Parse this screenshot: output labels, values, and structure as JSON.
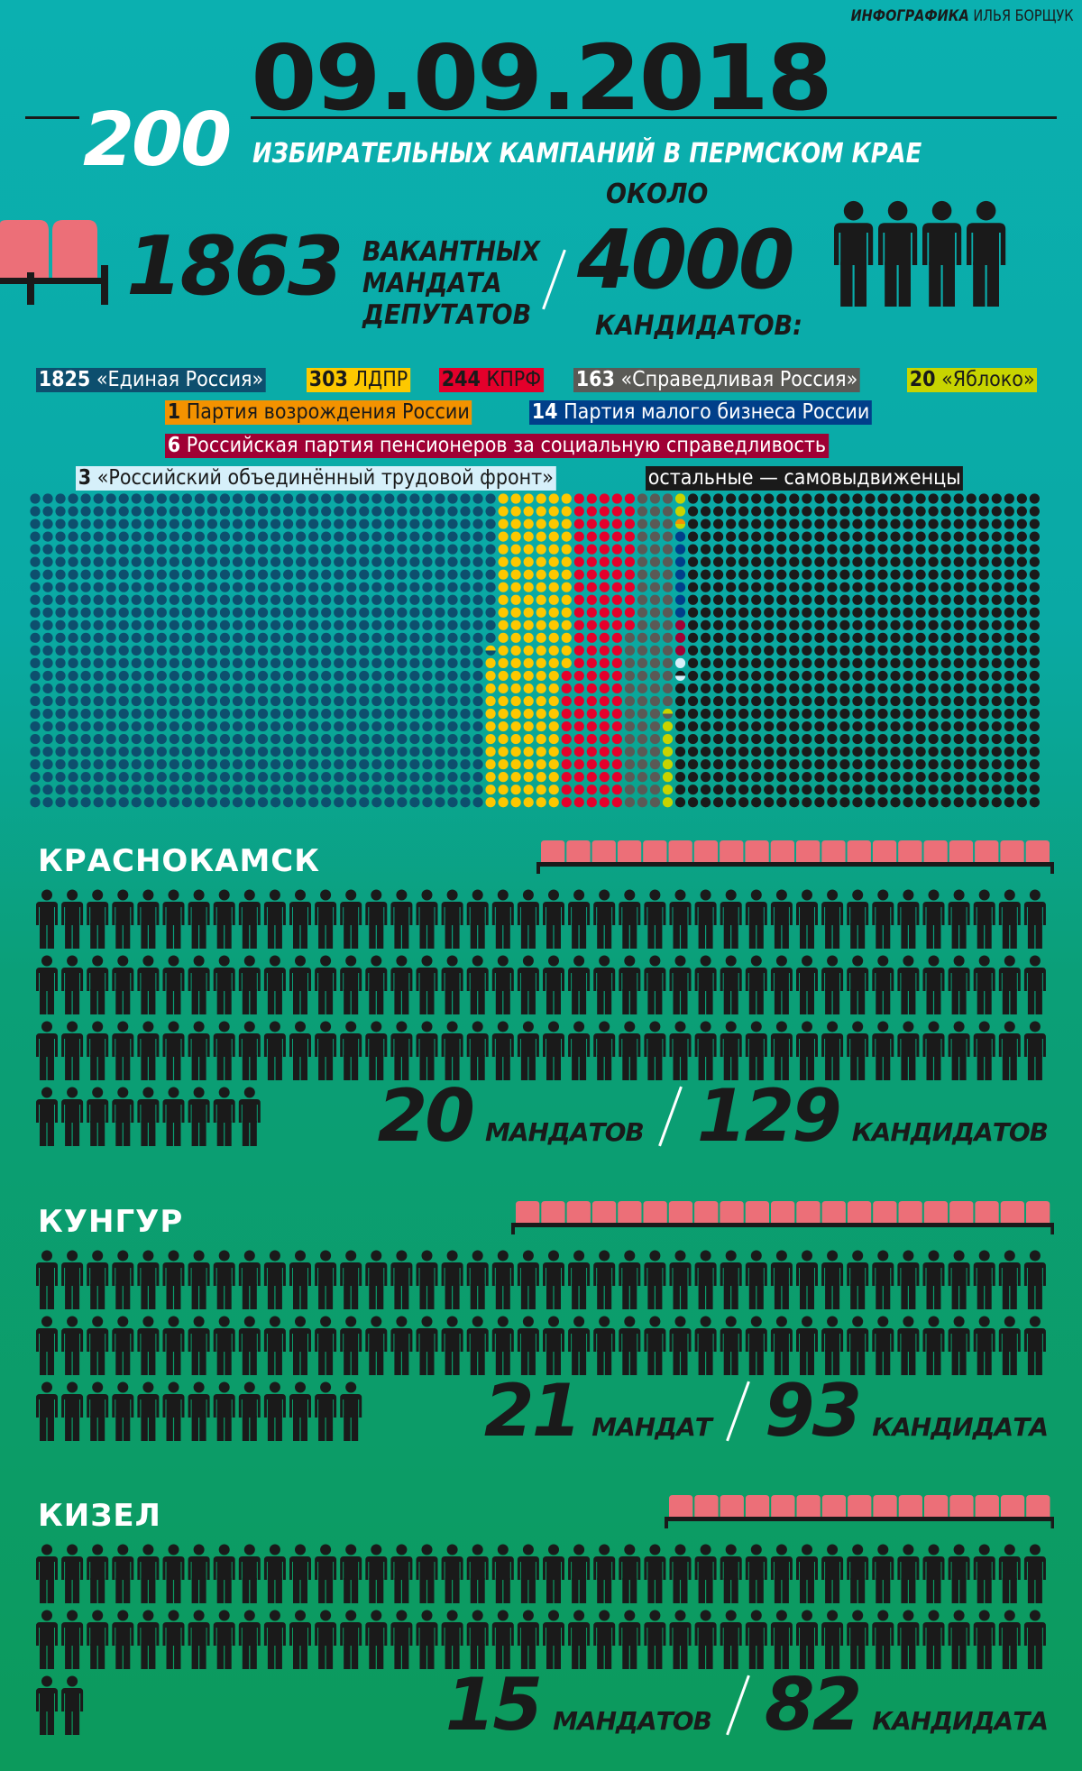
{
  "credit": {
    "bold": "ИНФОГРАФИКА",
    "name": "ИЛЬЯ БОРЩУК"
  },
  "date": "09.09.2018",
  "campaigns": {
    "number": "200",
    "text": "ИЗБИРАТЕЛЬНЫХ КАМПАНИЙ В ПЕРМСКОМ КРАЕ"
  },
  "summary": {
    "mandates": "1863",
    "mandates_l1": "ВАКАНТНЫХ",
    "mandates_l2": "МАНДАТА",
    "mandates_l3": "ДЕПУТАТОВ",
    "about": "ОКОЛО",
    "candidates": "4000",
    "candidates_label": "КАНДИДАТОВ:"
  },
  "colors": {
    "seat": "#ec6f78",
    "icon": "#1a1a1a",
    "text_light": "#ffffff"
  },
  "legend": [
    {
      "num": "1825",
      "label": "«Единая Россия»",
      "bg": "#0d4f6e",
      "fg": "#ffffff",
      "value": 1825
    },
    {
      "num": "303",
      "label": "ЛДПР",
      "bg": "#fdc800",
      "fg": "#1a1a1a",
      "value": 303
    },
    {
      "num": "244",
      "label": "КПРФ",
      "bg": "#e4002b",
      "fg": "#1a1a1a",
      "value": 244
    },
    {
      "num": "163",
      "label": "«Справедливая Россия»",
      "bg": "#5a5a56",
      "fg": "#ffffff",
      "value": 163
    },
    {
      "num": "20",
      "label": "«Яблоко»",
      "bg": "#c8d400",
      "fg": "#1a1a1a",
      "value": 20
    },
    {
      "num": "1",
      "label": "Партия возрождения России",
      "bg": "#f39200",
      "fg": "#1a1a1a",
      "value": 1
    },
    {
      "num": "14",
      "label": "Партия малого бизнеса России",
      "bg": "#003f8a",
      "fg": "#ffffff",
      "value": 14
    },
    {
      "num": "6",
      "label": "Российская партия пенсионеров за социальную справедливость",
      "bg": "#a00034",
      "fg": "#ffffff",
      "value": 6
    },
    {
      "num": "3",
      "label": "«Российский объединённый трудовой фронт»",
      "bg": "#d6f0fa",
      "fg": "#1a1a1a",
      "value": 3
    },
    {
      "num": "",
      "label": "остальные — самовыдвиженцы",
      "bg": "#1a1a1a",
      "fg": "#ffffff",
      "value": 1421
    }
  ],
  "cities": [
    {
      "name": "КРАСНОКАМСК",
      "mandates": "20",
      "mandates_label": "МАНДАТОВ",
      "candidates": "129",
      "candidates_label": "КАНДИДАТОВ"
    },
    {
      "name": "КУНГУР",
      "mandates": "21",
      "mandates_label": "МАНДАТ",
      "candidates": "93",
      "candidates_label": "КАНДИДАТА"
    },
    {
      "name": "КИЗЕЛ",
      "mandates": "15",
      "mandates_label": "МАНДАТОВ",
      "candidates": "82",
      "candidates_label": "КАНДИДАТА"
    }
  ]
}
